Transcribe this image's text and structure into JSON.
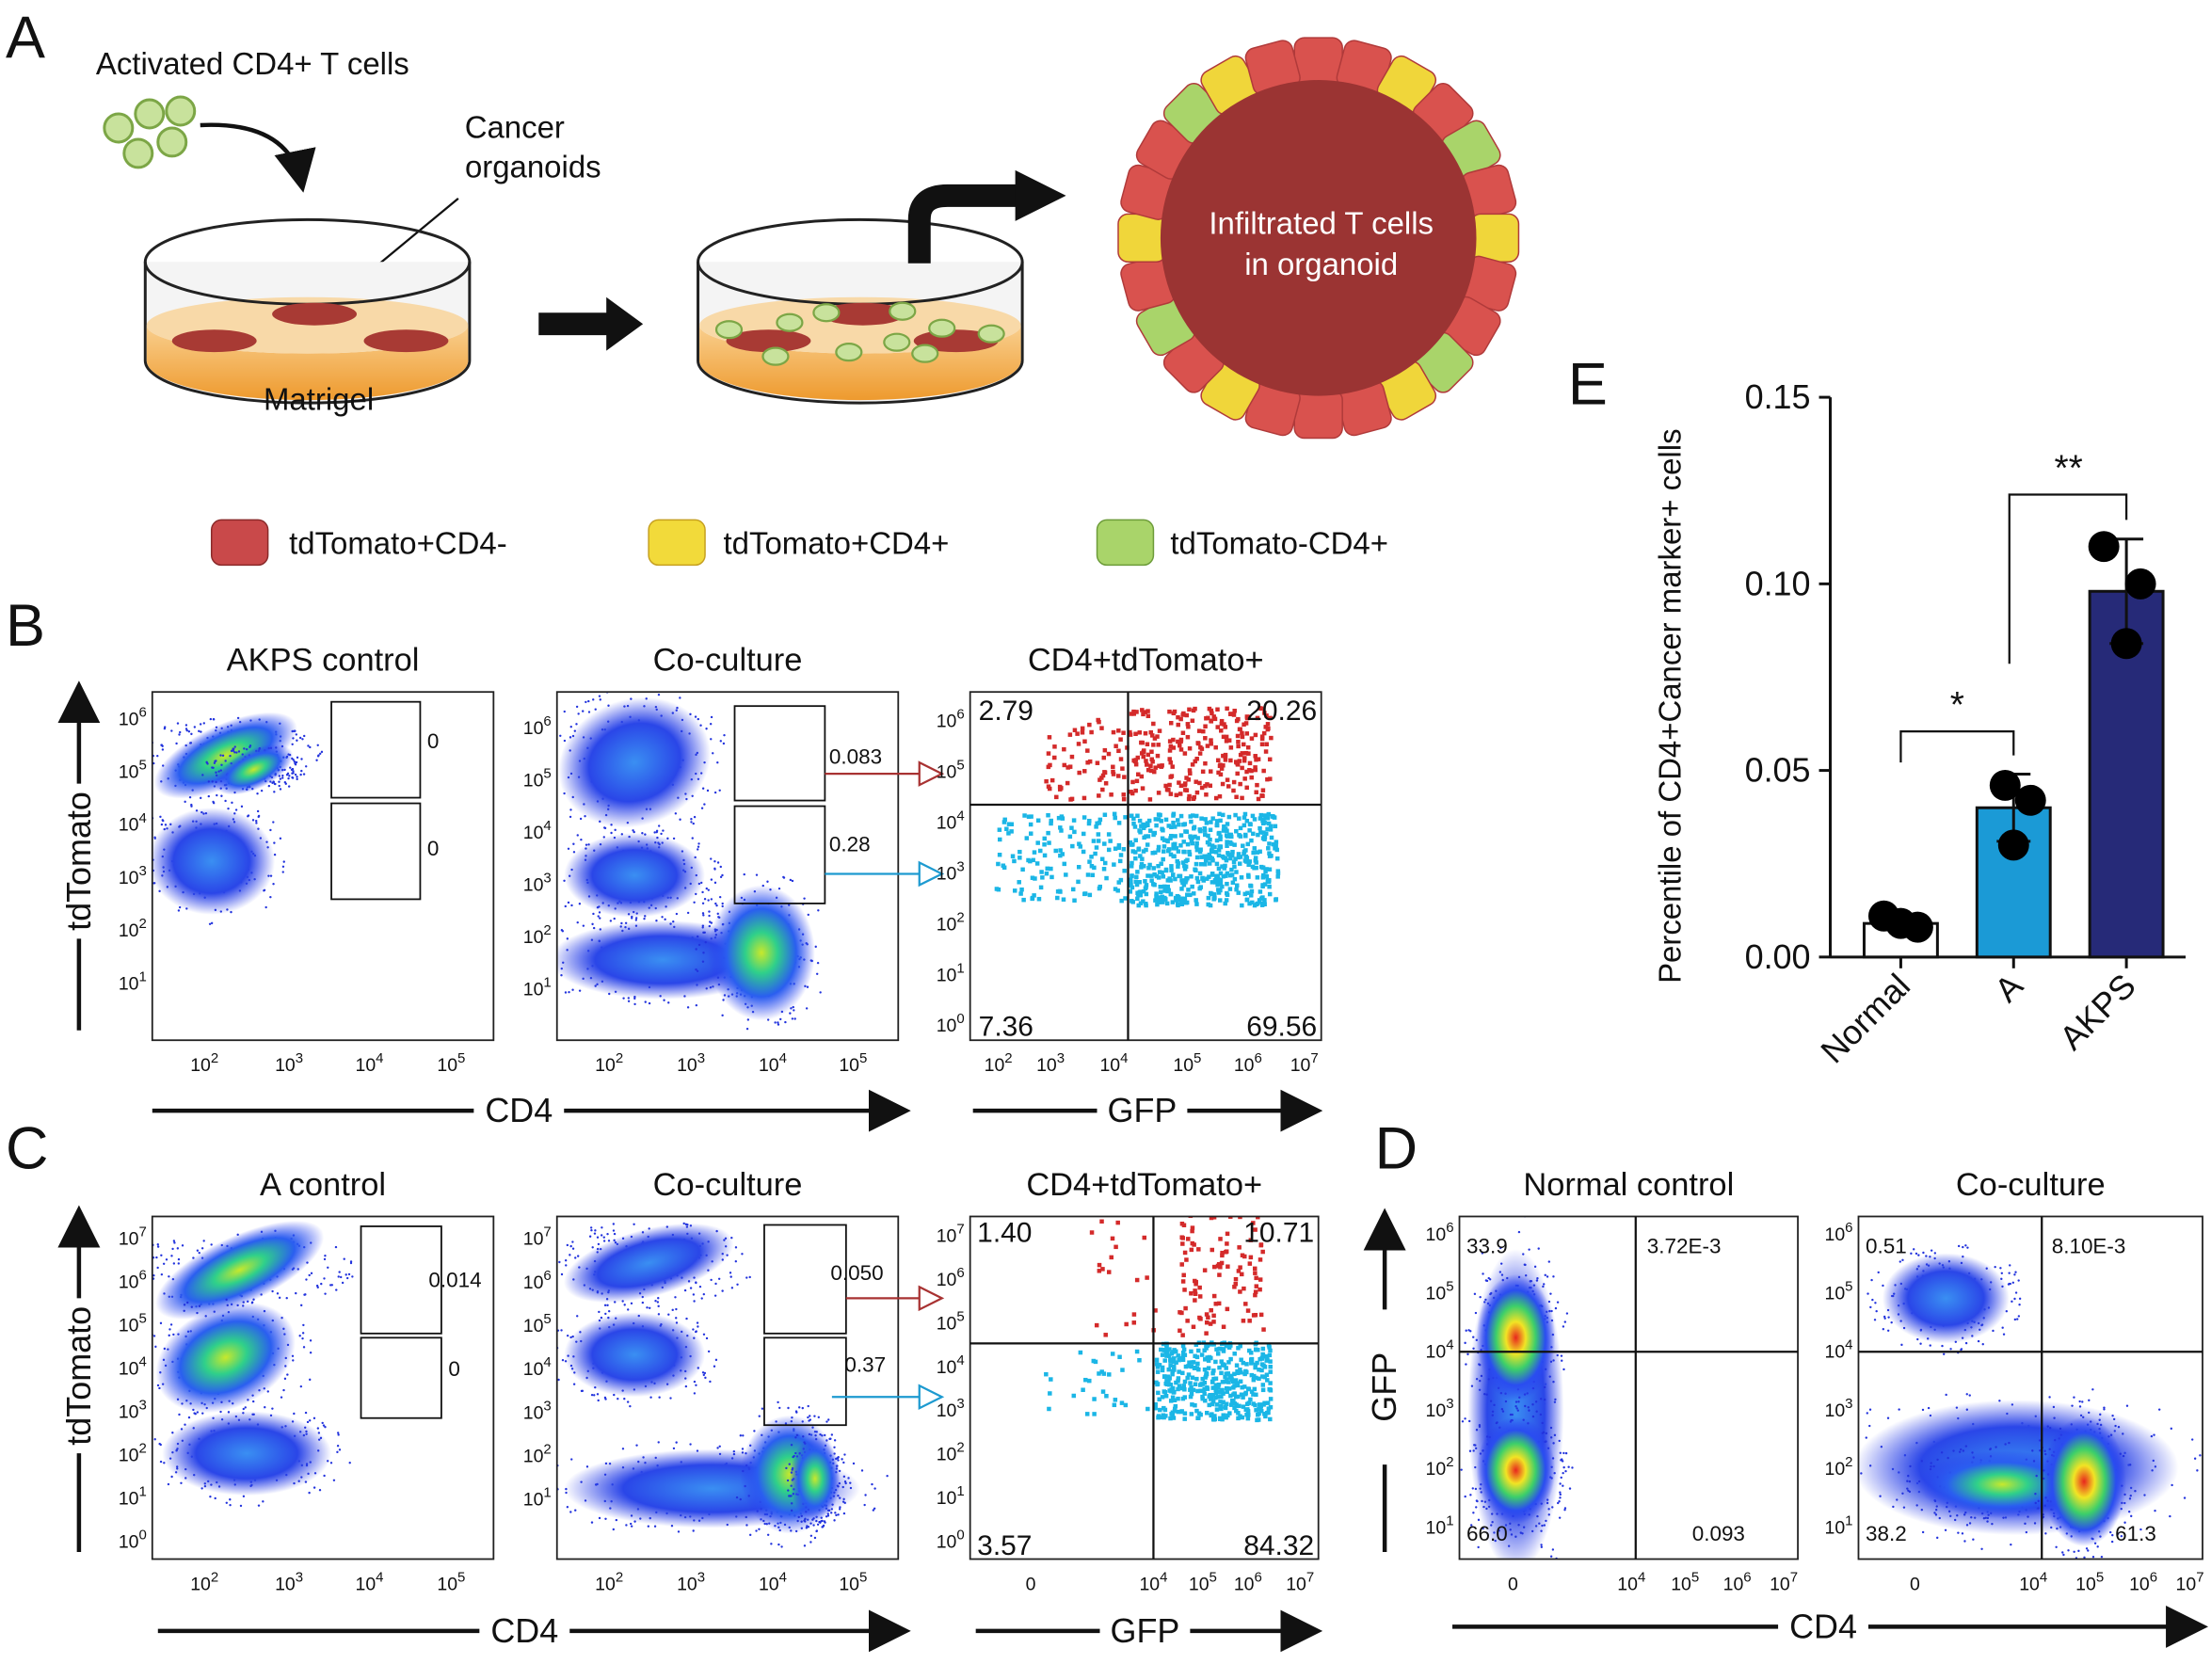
{
  "panel_labels": [
    "A",
    "B",
    "C",
    "D",
    "E"
  ],
  "schematic": {
    "t_cells": "Activated CD4+ T cells",
    "organoids": [
      "Cancer",
      "organoids"
    ],
    "matrigel": "Matrigel",
    "organoid_label": [
      "Infiltrated T cells",
      "in organoid"
    ]
  },
  "legend": [
    "tdTomato+CD4-",
    "tdTomato+CD4+",
    "tdTomato-CD4+"
  ],
  "flow_axis_base": "10",
  "axis_labels": {
    "B": {
      "y": "tdTomato",
      "x": [
        "CD4",
        "GFP"
      ]
    },
    "C": {
      "y": "tdTomato",
      "x": [
        "CD4",
        "GFP"
      ]
    },
    "D": {
      "y": "GFP",
      "x": [
        "CD4"
      ]
    }
  },
  "flow_plots": [
    {
      "title": "AKPS control",
      "gates": [
        "0",
        "0"
      ],
      "yexp": [
        "1",
        "2",
        "3",
        "4",
        "5",
        "6"
      ],
      "xexp": [
        "2",
        "3",
        "4",
        "5"
      ]
    },
    {
      "title": "Co-culture",
      "gates": [
        "0.083",
        "0.28"
      ],
      "yexp": [
        "1",
        "2",
        "3",
        "4",
        "5",
        "6"
      ],
      "xexp": [
        "2",
        "3",
        "4",
        "5"
      ]
    },
    {
      "title": "CD4+tdTomato+",
      "quadrants": [
        "2.79",
        "20.26",
        "7.36",
        "69.56"
      ],
      "yexp": [
        "0",
        "1",
        "2",
        "3",
        "4",
        "5",
        "6"
      ],
      "xexp": [
        "2",
        "3",
        "4",
        "5",
        "6",
        "7"
      ]
    },
    {
      "title": "A control",
      "gates": [
        "0.014",
        "0"
      ],
      "yexp": [
        "0",
        "1",
        "2",
        "3",
        "4",
        "5",
        "6",
        "7"
      ],
      "xexp": [
        "2",
        "3",
        "4",
        "5"
      ]
    },
    {
      "title": "Co-culture",
      "gates": [
        "0.050",
        "0.37"
      ],
      "yexp": [
        "1",
        "2",
        "3",
        "4",
        "5",
        "6",
        "7"
      ],
      "xexp": [
        "2",
        "3",
        "4",
        "5"
      ]
    },
    {
      "title": "CD4+tdTomato+",
      "quadrants": [
        "1.40",
        "10.71",
        "3.57",
        "84.32"
      ],
      "yexp": [
        "0",
        "1",
        "2",
        "3",
        "4",
        "5",
        "6",
        "7"
      ],
      "x_zero": "0",
      "xexp": [
        "4",
        "5",
        "6",
        "7"
      ]
    },
    {
      "title": "Normal control",
      "quadrants": [
        "33.9",
        "3.72E-3",
        "66.0",
        "0.093"
      ],
      "yexp": [
        "1",
        "2",
        "3",
        "4",
        "5",
        "6"
      ],
      "x_zero": "0",
      "xexp": [
        "4",
        "5",
        "6",
        "7"
      ]
    },
    {
      "title": "Co-culture",
      "quadrants": [
        "0.51",
        "8.10E-3",
        "38.2",
        "61.3"
      ],
      "yexp": [
        "1",
        "2",
        "3",
        "4",
        "5",
        "6"
      ],
      "x_zero": "0",
      "xexp": [
        "4",
        "5",
        "6",
        "7"
      ]
    }
  ],
  "chart_data": {
    "type": "bar",
    "y_label": "Percentile of CD4+Cancer marker+ cells",
    "categories": [
      "Normal",
      "A",
      "AKPS"
    ],
    "values": [
      0.009,
      0.04,
      0.098
    ],
    "errors": [
      0.001,
      0.009,
      0.014
    ],
    "points": [
      [
        0.011,
        0.009,
        0.008
      ],
      [
        0.046,
        0.042,
        0.03
      ],
      [
        0.11,
        0.1,
        0.084
      ]
    ],
    "colors": [
      "#ffffff",
      "#1b9ad6",
      "#262a78"
    ],
    "annotations": [
      "*",
      "**"
    ],
    "ylim": [
      0,
      0.15
    ],
    "yticks": [
      {
        "value": 0,
        "label": "0.00"
      },
      {
        "value": 0.05,
        "label": "0.05"
      },
      {
        "value": 0.1,
        "label": "0.10"
      },
      {
        "value": 0.15,
        "label": "0.15"
      }
    ]
  }
}
